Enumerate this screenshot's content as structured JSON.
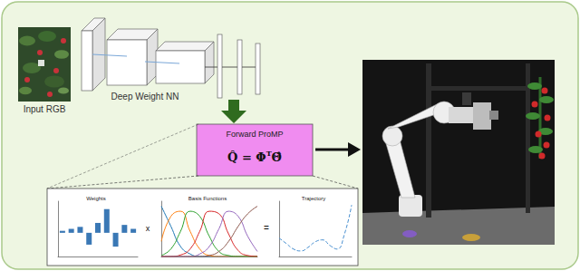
{
  "input_label": "Input RGB",
  "network_label": "Deep Weight NN",
  "promp_title": "Forward ProMP",
  "formula": {
    "lhs": "Q̂",
    "equals": "=",
    "basis": "Φ",
    "transpose": "T",
    "weights": "Θ̂"
  },
  "operators": [
    "x",
    "="
  ],
  "chart_data": [
    {
      "type": "bar",
      "title": "Weights",
      "x": [
        0,
        1,
        2,
        3,
        4,
        5,
        6,
        7,
        8
      ],
      "values": [
        0.05,
        0.1,
        0.15,
        -0.3,
        0.25,
        0.6,
        -0.35,
        0.2,
        0.1
      ],
      "color": "#3a78b5",
      "xlim": [
        -0.5,
        8.5
      ],
      "ylim": [
        -0.6,
        0.8
      ],
      "tick_labels": false
    },
    {
      "type": "line",
      "title": "Basis Functions",
      "x": [
        0,
        0.1,
        0.2,
        0.3,
        0.4,
        0.5,
        0.6,
        0.7,
        0.8,
        0.9,
        1
      ],
      "series": [
        {
          "color": "#1f77b4",
          "values": [
            1,
            0.6,
            0.2,
            0.05,
            0,
            0,
            0,
            0,
            0,
            0,
            0
          ]
        },
        {
          "color": "#ff7f0e",
          "values": [
            0.3,
            0.8,
            0.9,
            0.5,
            0.15,
            0.02,
            0,
            0,
            0,
            0,
            0
          ]
        },
        {
          "color": "#2ca02c",
          "values": [
            0.02,
            0.15,
            0.5,
            0.9,
            0.8,
            0.4,
            0.1,
            0.02,
            0,
            0,
            0
          ]
        },
        {
          "color": "#d62728",
          "values": [
            0,
            0,
            0.03,
            0.15,
            0.5,
            0.9,
            0.85,
            0.45,
            0.12,
            0.02,
            0
          ]
        },
        {
          "color": "#9467bd",
          "values": [
            0,
            0,
            0,
            0,
            0.05,
            0.2,
            0.55,
            0.9,
            0.8,
            0.4,
            0.1
          ]
        },
        {
          "color": "#8c564b",
          "values": [
            0,
            0,
            0,
            0,
            0,
            0.02,
            0.1,
            0.3,
            0.6,
            0.85,
            1
          ]
        }
      ],
      "xlim": [
        0,
        1
      ],
      "ylim": [
        0,
        1.1
      ],
      "line_style": "solid",
      "tick_labels": false
    },
    {
      "type": "line",
      "title": "Trajectory",
      "x": [
        0,
        0.1,
        0.2,
        0.3,
        0.4,
        0.5,
        0.6,
        0.7,
        0.8,
        0.9,
        1
      ],
      "series": [
        {
          "color": "#4a90d0",
          "values": [
            0.0,
            -0.15,
            -0.3,
            -0.35,
            -0.25,
            -0.1,
            -0.05,
            -0.2,
            -0.3,
            0.1,
            0.9
          ]
        }
      ],
      "xlim": [
        0,
        1
      ],
      "ylim": [
        -0.5,
        1.0
      ],
      "line_style": "dashed",
      "tick_labels": false
    }
  ]
}
